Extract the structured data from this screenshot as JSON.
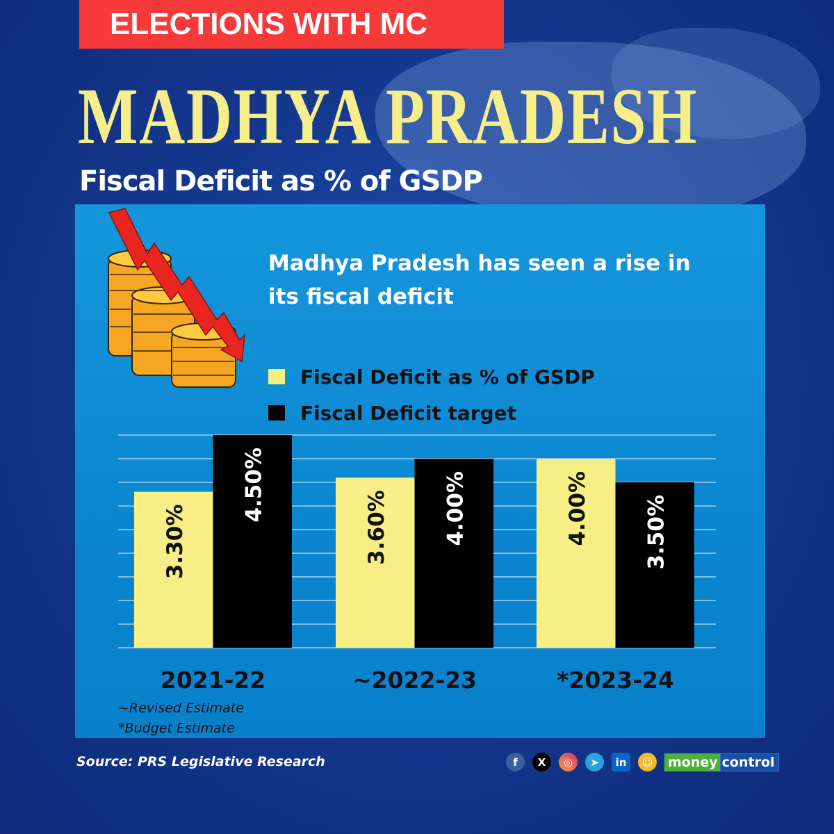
{
  "banner": {
    "label": "ELECTIONS WITH MC"
  },
  "title": "MADHYA PRADESH",
  "subtitle": "Fiscal Deficit as % of GSDP",
  "headline": "Madhya Pradesh has seen a rise in its fiscal deficit",
  "notes": [
    "~Revised Estimate",
    "*Budget Estimate"
  ],
  "source": "Source: PRS Legislative Research",
  "footer": {
    "social_icons": [
      "facebook-icon",
      "x-icon",
      "instagram-icon",
      "telegram-icon",
      "linkedin-icon",
      "snapchat-icon"
    ],
    "logo_money": "money",
    "logo_control": "control"
  },
  "colors": {
    "banner": "#f63a3a",
    "title": "#f6ee8a",
    "series_actual": "#f7ee86",
    "series_target": "#000000"
  },
  "chart_data": {
    "type": "bar",
    "title": "Fiscal Deficit as % of GSDP",
    "categories": [
      "2021-22",
      "~2022-23",
      "*2023-24"
    ],
    "series": [
      {
        "name": "Fiscal Deficit as % of GSDP",
        "values": [
          3.3,
          3.6,
          4.0
        ],
        "labels": [
          "3.30%",
          "3.60%",
          "4.00%"
        ],
        "color": "#f7ee86",
        "label_color": "#111111"
      },
      {
        "name": "Fiscal Deficit target",
        "values": [
          4.5,
          4.0,
          3.5
        ],
        "labels": [
          "4.50%",
          "4.00%",
          "3.50%"
        ],
        "color": "#000000",
        "label_color": "#ffffff"
      }
    ],
    "xlabel": "",
    "ylabel": "",
    "ylim": [
      0,
      4.5
    ],
    "grid_step": 0.5,
    "grid": true,
    "legend": "top-right"
  }
}
